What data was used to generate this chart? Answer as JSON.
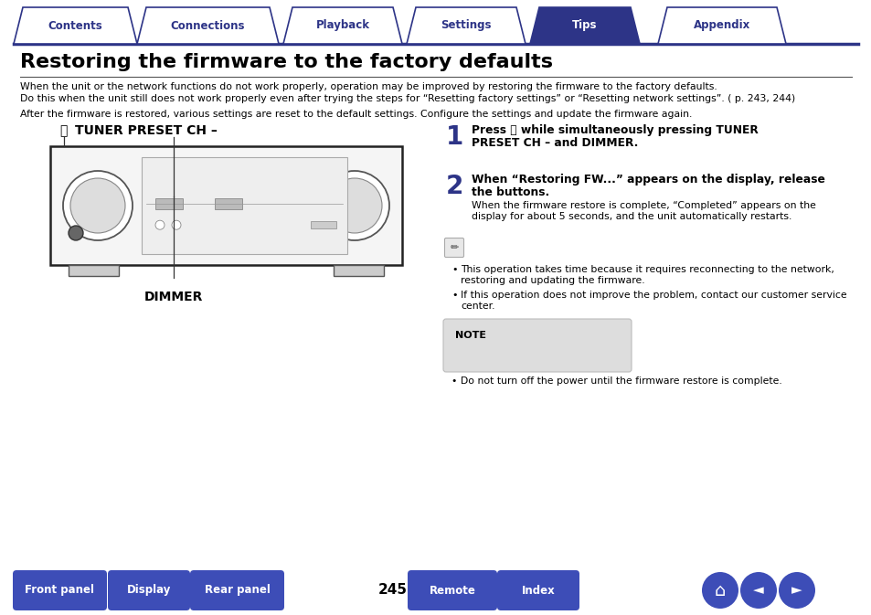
{
  "tab_labels": [
    "Contents",
    "Connections",
    "Playback",
    "Settings",
    "Tips",
    "Appendix"
  ],
  "active_tab": 4,
  "tab_color_active": "#2d3487",
  "tab_color_inactive": "#ffffff",
  "tab_text_color_active": "#ffffff",
  "tab_text_color_inactive": "#2d3487",
  "tab_border_color": "#2d3487",
  "header_line_color": "#2d3487",
  "title": "Restoring the firmware to the factory defaults",
  "body_text_1": "When the unit or the network functions do not work properly, operation may be improved by restoring the firmware to the factory defaults.",
  "body_text_2": "Do this when the unit still does not work properly even after trying the steps for “Resetting factory settings” or “Resetting network settings”. ( p. 243, 244)",
  "body_text_3": "After the firmware is restored, various settings are reset to the default settings. Configure the settings and update the firmware again.",
  "label_power": "TUNER PRESET CH –",
  "label_dimmer": "DIMMER",
  "step1_bold_line1": "Press ⏻ while simultaneously pressing TUNER",
  "step1_bold_line2": "PRESET CH – and DIMMER.",
  "step2_bold_line1": "When “Restoring FW...” appears on the display, release",
  "step2_bold_line2": "the buttons.",
  "step2_body_line1": "When the firmware restore is complete, “Completed” appears on the",
  "step2_body_line2": "display for about 5 seconds, and the unit automatically restarts.",
  "bullet1_line1": "This operation takes time because it requires reconnecting to the network,",
  "bullet1_line2": "restoring and updating the firmware.",
  "bullet2_line1": "If this operation does not improve the problem, contact our customer service",
  "bullet2_line2": "center.",
  "note_label": "NOTE",
  "note_text": "• Do not turn off the power until the firmware restore is complete.",
  "nav_buttons": [
    "Front panel",
    "Display",
    "Rear panel",
    "Remote",
    "Index"
  ],
  "page_number": "245",
  "nav_button_color": "#3d4db7",
  "background_color": "#ffffff",
  "text_color": "#000000",
  "dark_blue": "#2d3487"
}
